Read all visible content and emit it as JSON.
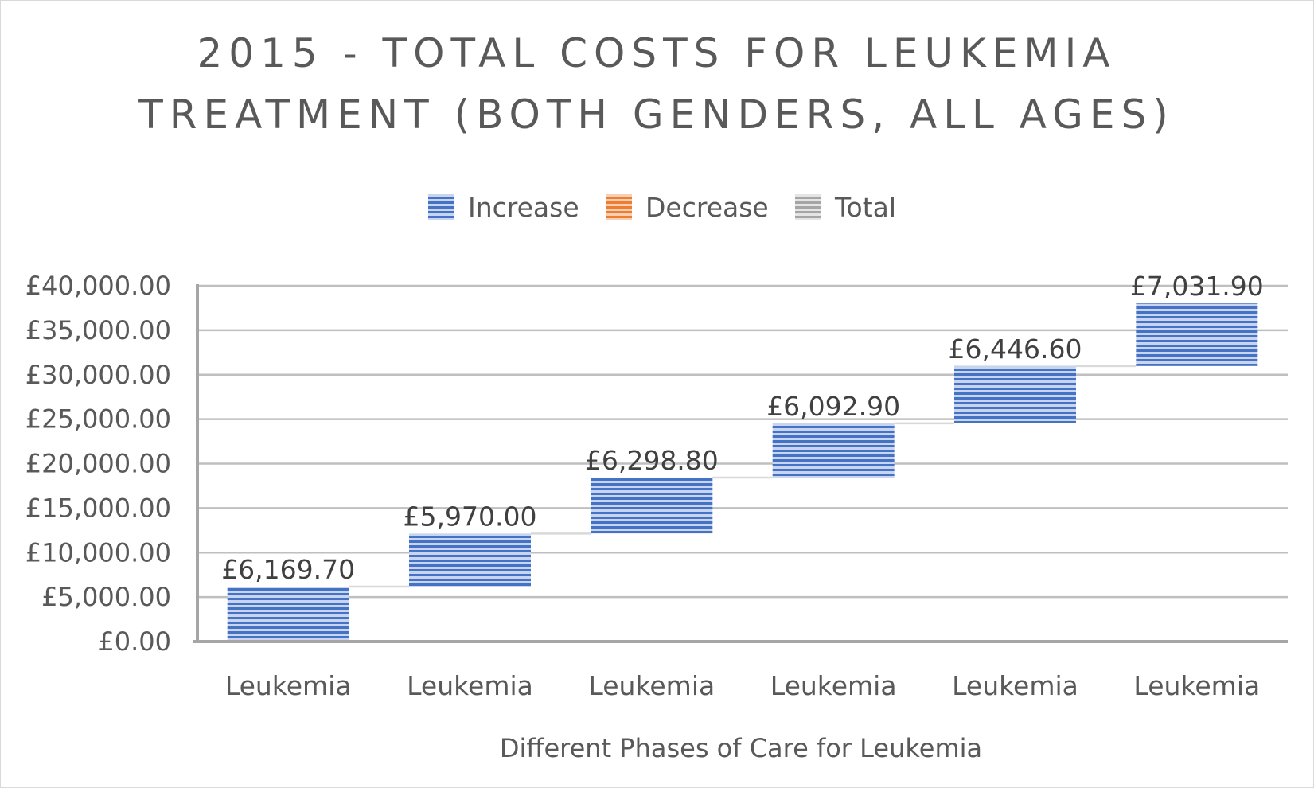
{
  "chart_data": {
    "type": "waterfall",
    "title": "2015 - TOTAL COSTS FOR LEUKEMIA TREATMENT (BOTH GENDERS, ALL AGES)",
    "title_lines": [
      "2015 - TOTAL COSTS FOR LEUKEMIA",
      "TREATMENT (BOTH GENDERS, ALL AGES)"
    ],
    "legend": {
      "position": "top",
      "items": [
        {
          "label": "Increase",
          "color": "#4472c4"
        },
        {
          "label": "Decrease",
          "color": "#ed7d31"
        },
        {
          "label": "Total",
          "color": "#a5a5a5"
        }
      ]
    },
    "xlabel": "Different Phases of Care for Leukemia",
    "ylabel": "",
    "categories": [
      "Leukemia",
      "Leukemia",
      "Leukemia",
      "Leukemia",
      "Leukemia",
      "Leukemia"
    ],
    "values": [
      6169.7,
      5970.0,
      6298.8,
      6092.9,
      6446.6,
      7031.9
    ],
    "data_labels": [
      "£6,169.70",
      "£5,970.00",
      "£6,298.80",
      "£6,092.90",
      "£6,446.60",
      "£7,031.90"
    ],
    "ylim": [
      0,
      40000
    ],
    "yticks": [
      0,
      5000,
      10000,
      15000,
      20000,
      25000,
      30000,
      35000,
      40000
    ],
    "ytick_labels": [
      "£0.00",
      "£5,000.00",
      "£10,000.00",
      "£15,000.00",
      "£20,000.00",
      "£25,000.00",
      "£30,000.00",
      "£35,000.00",
      "£40,000.00"
    ],
    "grid": true,
    "colors": {
      "increase": "#4472c4",
      "decrease": "#ed7d31",
      "total": "#a5a5a5",
      "text": "#595959",
      "grid": "#bfbfbf",
      "connector": "#d9d9d9"
    }
  }
}
